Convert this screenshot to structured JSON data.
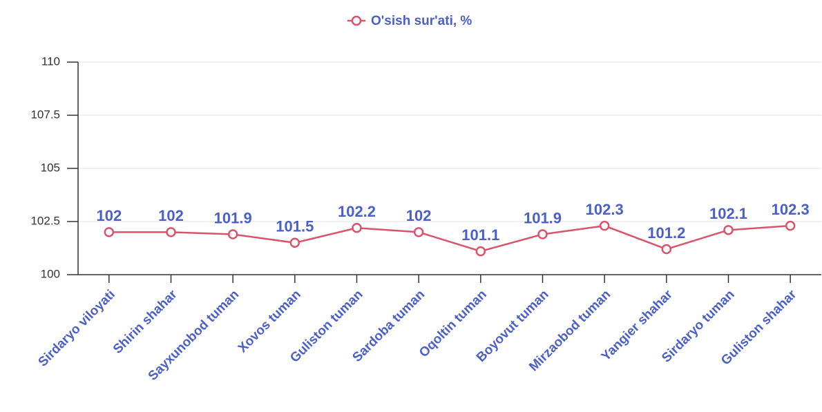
{
  "chart_data": {
    "type": "line",
    "categories": [
      "Sirdaryo viloyati",
      "Shirin shahar",
      "Sayxunobod tuman",
      "Xovos tuman",
      "Guliston tuman",
      "Sardoba tuman",
      "Oqoltin tuman",
      "Boyovut tuman",
      "Mirzaobod tuman",
      "Yangier shahar",
      "Sirdaryo tuman",
      "Guliston shahar"
    ],
    "series": [
      {
        "name": "O'sish sur'ati, %",
        "color": "#d9536a",
        "values": [
          102,
          102,
          101.9,
          101.5,
          102.2,
          102,
          101.1,
          101.9,
          102.3,
          101.2,
          102.1,
          102.3
        ]
      }
    ],
    "ylim": [
      100,
      110
    ],
    "yticks": [
      100,
      102.5,
      105,
      107.5,
      110
    ],
    "grid": true,
    "legend": "top"
  }
}
